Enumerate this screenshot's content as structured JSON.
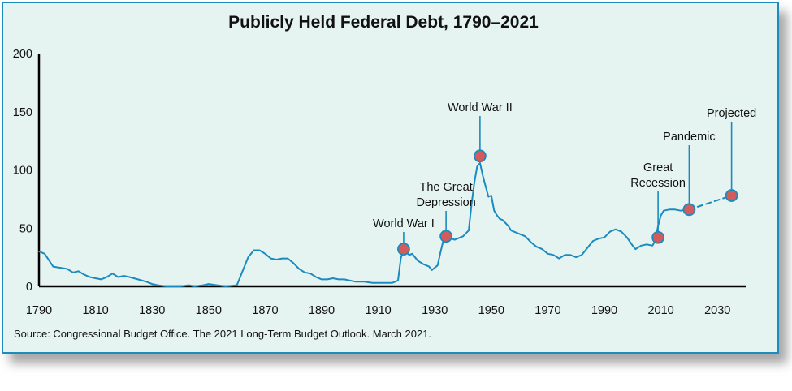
{
  "chart_data": {
    "type": "line",
    "title": "Publicly Held Federal Debt, 1790–2021",
    "xlabel": "",
    "ylabel": "",
    "xlim": [
      1790,
      2040
    ],
    "ylim": [
      0,
      200
    ],
    "x_ticks": [
      "1790",
      "1810",
      "1830",
      "1850",
      "1870",
      "1890",
      "1910",
      "1930",
      "1950",
      "1970",
      "1990",
      "2010",
      "2030"
    ],
    "y_ticks": [
      "0",
      "50",
      "100",
      "150",
      "200"
    ],
    "grid": false,
    "series": [
      {
        "points": [
          [
            1790,
            30
          ],
          [
            1792,
            28
          ],
          [
            1795,
            17
          ],
          [
            1800,
            15
          ],
          [
            1802,
            12
          ],
          [
            1804,
            13
          ],
          [
            1806,
            10
          ],
          [
            1808,
            8
          ],
          [
            1810,
            7
          ],
          [
            1812,
            6
          ],
          [
            1814,
            8
          ],
          [
            1816,
            11
          ],
          [
            1818,
            8
          ],
          [
            1820,
            9
          ],
          [
            1822,
            8
          ],
          [
            1825,
            6
          ],
          [
            1828,
            4
          ],
          [
            1830,
            2
          ],
          [
            1832,
            1
          ],
          [
            1835,
            0
          ],
          [
            1840,
            0
          ],
          [
            1843,
            1
          ],
          [
            1845,
            0
          ],
          [
            1848,
            1
          ],
          [
            1850,
            2
          ],
          [
            1853,
            1
          ],
          [
            1856,
            0
          ],
          [
            1860,
            1
          ],
          [
            1862,
            13
          ],
          [
            1864,
            25
          ],
          [
            1866,
            31
          ],
          [
            1868,
            31
          ],
          [
            1870,
            28
          ],
          [
            1872,
            24
          ],
          [
            1874,
            23
          ],
          [
            1876,
            24
          ],
          [
            1878,
            24
          ],
          [
            1880,
            20
          ],
          [
            1882,
            15
          ],
          [
            1884,
            12
          ],
          [
            1886,
            11
          ],
          [
            1888,
            8
          ],
          [
            1890,
            6
          ],
          [
            1892,
            6
          ],
          [
            1894,
            7
          ],
          [
            1896,
            6
          ],
          [
            1898,
            6
          ],
          [
            1900,
            5
          ],
          [
            1902,
            4
          ],
          [
            1905,
            4
          ],
          [
            1908,
            3
          ],
          [
            1912,
            3
          ],
          [
            1915,
            3
          ],
          [
            1917,
            5
          ],
          [
            1918,
            24
          ],
          [
            1919,
            32
          ],
          [
            1920,
            29
          ],
          [
            1921,
            27
          ],
          [
            1922,
            28
          ],
          [
            1924,
            22
          ],
          [
            1926,
            19
          ],
          [
            1928,
            17
          ],
          [
            1929,
            14
          ],
          [
            1931,
            18
          ],
          [
            1932,
            29
          ],
          [
            1933,
            39
          ],
          [
            1934,
            43
          ],
          [
            1936,
            41
          ],
          [
            1937,
            40
          ],
          [
            1938,
            41
          ],
          [
            1940,
            43
          ],
          [
            1942,
            48
          ],
          [
            1943,
            70
          ],
          [
            1944,
            89
          ],
          [
            1945,
            103
          ],
          [
            1946,
            106
          ],
          [
            1947,
            95
          ],
          [
            1948,
            86
          ],
          [
            1949,
            77
          ],
          [
            1950,
            78
          ],
          [
            1951,
            65
          ],
          [
            1952,
            61
          ],
          [
            1953,
            58
          ],
          [
            1954,
            57
          ],
          [
            1956,
            52
          ],
          [
            1957,
            48
          ],
          [
            1958,
            47
          ],
          [
            1960,
            45
          ],
          [
            1962,
            43
          ],
          [
            1964,
            38
          ],
          [
            1966,
            34
          ],
          [
            1968,
            32
          ],
          [
            1970,
            28
          ],
          [
            1972,
            27
          ],
          [
            1974,
            24
          ],
          [
            1976,
            27
          ],
          [
            1978,
            27
          ],
          [
            1980,
            25
          ],
          [
            1982,
            27
          ],
          [
            1984,
            33
          ],
          [
            1986,
            39
          ],
          [
            1988,
            41
          ],
          [
            1990,
            42
          ],
          [
            1992,
            47
          ],
          [
            1994,
            49
          ],
          [
            1996,
            47
          ],
          [
            1998,
            42
          ],
          [
            2000,
            35
          ],
          [
            2001,
            32
          ],
          [
            2003,
            35
          ],
          [
            2005,
            36
          ],
          [
            2007,
            35
          ],
          [
            2008,
            39
          ],
          [
            2009,
            52
          ],
          [
            2010,
            61
          ],
          [
            2011,
            65
          ],
          [
            2013,
            66
          ],
          [
            2015,
            66
          ],
          [
            2017,
            65
          ],
          [
            2019,
            66
          ]
        ]
      },
      {
        "projected": true,
        "points": [
          [
            2020,
            66
          ],
          [
            2025,
            70
          ],
          [
            2030,
            74
          ],
          [
            2035,
            78
          ]
        ]
      }
    ],
    "highlights": [
      {
        "x": 1919,
        "y": 32,
        "label": [
          "World War I"
        ]
      },
      {
        "x": 1934,
        "y": 43,
        "label": [
          "The Great",
          "Depression"
        ]
      },
      {
        "x": 1946,
        "y": 112,
        "label": [
          "World War II"
        ]
      },
      {
        "x": 2009,
        "y": 42,
        "label": [
          "Great",
          "Recession"
        ]
      },
      {
        "x": 2020,
        "y": 66,
        "label": [
          "Pandemic"
        ]
      },
      {
        "x": 2035,
        "y": 78,
        "label": [
          "Projected"
        ]
      }
    ],
    "line_color": "#1a8bc0",
    "marker_color": "#d25b5b"
  },
  "source_note": "Source: Congressional Budget Office. The 2021 Long-Term Budget Outlook. March 2021."
}
